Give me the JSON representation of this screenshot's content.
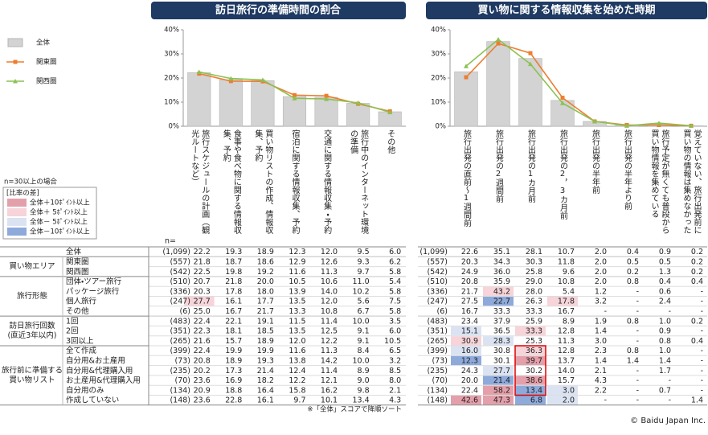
{
  "chart_data": [
    {
      "type": "bar",
      "title": "訪日旅行の準備時間の割合",
      "categories": [
        "旅行スケジュールの計画（観光ルートなど）",
        "食事や食べ物に関する情報収集、予約",
        "買い物リストの作成、情報収集、予約",
        "宿泊に関する情報収集、予約",
        "交通に関する情報収集・予約",
        "旅行中のインターネット環境の準備",
        "その他"
      ],
      "series": [
        {
          "name": "全体",
          "kind": "bar",
          "color": "#d3d3d3",
          "values": [
            22.2,
            19.3,
            18.9,
            12.3,
            12.0,
            9.5,
            6.0
          ]
        },
        {
          "name": "関東圏",
          "kind": "line",
          "marker": "square",
          "color": "#ed7d31",
          "values": [
            21.8,
            18.7,
            18.6,
            12.9,
            12.6,
            9.3,
            6.2
          ]
        },
        {
          "name": "関西圏",
          "kind": "line",
          "marker": "triangle",
          "color": "#8cc152",
          "values": [
            22.5,
            19.8,
            19.2,
            11.6,
            11.3,
            9.7,
            5.8
          ]
        }
      ],
      "ylim": [
        0,
        40
      ],
      "yticks": [
        {
          "value": 0,
          "label": "0%"
        },
        {
          "value": 10,
          "label": "10%"
        },
        {
          "value": 20,
          "label": "20%"
        },
        {
          "value": 30,
          "label": "30%"
        },
        {
          "value": 40,
          "label": "40%"
        }
      ]
    },
    {
      "type": "bar",
      "title": "買い物に関する情報収集を始めた時期",
      "categories": [
        "旅行出発の直前〜1週間前",
        "旅行出発の2週間前",
        "旅行出発の1カ月前",
        "旅行出発の2，3カ月前",
        "旅行出発の半年前",
        "旅行出発の半年より前",
        "旅行予定が無くても普段から買い物情報を集めている",
        "覚えていない、旅行出発前に買い物の情報は集めなかった"
      ],
      "series": [
        {
          "kind": "bar",
          "color": "#d3d3d3",
          "values": [
            22.6,
            35.1,
            28.1,
            10.7,
            2.0,
            0.4,
            0.9,
            0.2
          ]
        },
        {
          "kind": "line",
          "marker": "square",
          "color": "#ed7d31",
          "values": [
            20.3,
            34.3,
            30.3,
            11.8,
            2.0,
            0.5,
            0.5,
            0.2
          ]
        },
        {
          "kind": "line",
          "marker": "triangle",
          "color": "#8cc152",
          "values": [
            24.9,
            36.0,
            25.8,
            9.6,
            2.0,
            0.2,
            1.3,
            0.2
          ]
        }
      ],
      "ylim": [
        0,
        40
      ],
      "yticks": [
        {
          "value": 0,
          "label": "0%"
        },
        {
          "value": 10,
          "label": "10%"
        },
        {
          "value": 20,
          "label": "20%"
        },
        {
          "value": 30,
          "label": "30%"
        },
        {
          "value": 40,
          "label": "40%"
        }
      ]
    }
  ],
  "note": "n=30以上の場合",
  "diff_legend": {
    "title": "[比率の差]",
    "items": [
      {
        "label": "全体＋10ﾎﾟｲﾝﾄ以上",
        "color": "#e3a0aa"
      },
      {
        "label": "全体＋ 5ﾎﾟｲﾝﾄ以上",
        "color": "#f6d4d9"
      },
      {
        "label": "全体－ 5ﾎﾟｲﾝﾄ以上",
        "color": "#dbe3f3"
      },
      {
        "label": "全体－10ﾎﾟｲﾝﾄ以上",
        "color": "#8eaadb"
      }
    ]
  },
  "table": {
    "n_label": "n=",
    "sections": [
      {
        "rows": [
          {
            "label": "全体",
            "n": "(1,099)",
            "left": [
              "22.2",
              "19.3",
              "18.9",
              "12.3",
              "12.0",
              "9.5",
              "6.0"
            ],
            "right": [
              "22.6",
              "35.1",
              "28.1",
              "10.7",
              "2.0",
              "0.4",
              "0.9",
              "0.2"
            ]
          }
        ]
      },
      {
        "label": [
          "買い物エリア"
        ],
        "rows": [
          {
            "label": "関東圏",
            "n": "(557)",
            "left": [
              "21.8",
              "18.7",
              "18.6",
              "12.9",
              "12.6",
              "9.3",
              "6.2"
            ],
            "right": [
              "20.3",
              "34.3",
              "30.3",
              "11.8",
              "2.0",
              "0.5",
              "0.5",
              "0.2"
            ]
          },
          {
            "label": "関西圏",
            "n": "(542)",
            "left": [
              "22.5",
              "19.8",
              "19.2",
              "11.6",
              "11.3",
              "9.7",
              "5.8"
            ],
            "right": [
              "24.9",
              "36.0",
              "25.8",
              "9.6",
              "2.0",
              "0.2",
              "1.3",
              "0.2"
            ]
          }
        ]
      },
      {
        "label": [
          "旅行形態"
        ],
        "rows": [
          {
            "label": "団体・ツアー旅行",
            "n": "(510)",
            "left": [
              "20.7",
              "21.8",
              "20.0",
              "10.5",
              "10.6",
              "11.0",
              "5.4"
            ],
            "right": [
              "20.8",
              "35.9",
              "29.0",
              "10.8",
              "2.0",
              "0.8",
              "0.4",
              "0.4"
            ]
          },
          {
            "label": "パッケージ旅行",
            "n": "(336)",
            "left": [
              "20.3",
              "17.8",
              "18.0",
              "13.9",
              "14.0",
              "10.2",
              "5.8"
            ],
            "right": [
              "21.7",
              "43.2",
              "28.0",
              "5.4",
              "1.2",
              "-",
              "0.6",
              "-"
            ],
            "fills": [
              {
                "side": "right",
                "col": 1,
                "level": 1
              }
            ]
          },
          {
            "label": "個人旅行",
            "n": "(247)",
            "left": [
              "27.7",
              "16.1",
              "17.7",
              "13.5",
              "12.0",
              "5.6",
              "7.5"
            ],
            "right": [
              "27.5",
              "22.7",
              "26.3",
              "17.8",
              "3.2",
              "-",
              "2.4",
              "-"
            ],
            "fills": [
              {
                "side": "left",
                "col": 0,
                "level": 1
              },
              {
                "side": "right",
                "col": 1,
                "level": 3
              },
              {
                "side": "right",
                "col": 3,
                "level": 1
              }
            ]
          },
          {
            "label": "その他",
            "n": "(6)",
            "left": [
              "25.0",
              "16.7",
              "21.7",
              "13.3",
              "10.8",
              "6.7",
              "5.8"
            ],
            "right": [
              "16.7",
              "33.3",
              "33.3",
              "16.7",
              "-",
              "-",
              "-",
              "-"
            ]
          }
        ]
      },
      {
        "label": [
          "訪日旅行回数",
          "(直近3年以内)"
        ],
        "rows": [
          {
            "label": "1回",
            "n": "(483)",
            "left": [
              "22.4",
              "22.1",
              "19.1",
              "11.5",
              "11.4",
              "10.0",
              "3.5"
            ],
            "right": [
              "23.4",
              "37.9",
              "25.9",
              "8.9",
              "1.9",
              "0.8",
              "1.0",
              "0.2"
            ]
          },
          {
            "label": "2回",
            "n": "(351)",
            "left": [
              "22.3",
              "18.1",
              "18.5",
              "13.5",
              "12.5",
              "9.1",
              "6.0"
            ],
            "right": [
              "15.1",
              "36.5",
              "33.3",
              "12.8",
              "1.4",
              "-",
              "0.9",
              "-"
            ],
            "fills": [
              {
                "side": "right",
                "col": 0,
                "level": 2
              },
              {
                "side": "right",
                "col": 2,
                "level": 1
              }
            ]
          },
          {
            "label": "3回以上",
            "n": "(265)",
            "left": [
              "21.6",
              "15.7",
              "18.9",
              "12.0",
              "12.2",
              "9.1",
              "10.5"
            ],
            "right": [
              "30.9",
              "28.3",
              "25.3",
              "11.3",
              "3.0",
              "-",
              "0.8",
              "0.4"
            ],
            "fills": [
              {
                "side": "right",
                "col": 0,
                "level": 1
              },
              {
                "side": "right",
                "col": 1,
                "level": 2
              }
            ]
          }
        ]
      },
      {
        "label": [
          "旅行前に準備する",
          "買い物リスト"
        ],
        "rows": [
          {
            "label": "全て作成",
            "n": "(399)",
            "left": [
              "22.4",
              "19.9",
              "19.9",
              "11.6",
              "11.3",
              "8.4",
              "6.5"
            ],
            "right": [
              "16.0",
              "30.8",
              "36.3",
              "12.8",
              "2.3",
              "0.8",
              "1.0",
              "-"
            ],
            "fills": [
              {
                "side": "right",
                "col": 0,
                "level": 2
              },
              {
                "side": "right",
                "col": 2,
                "level": 1
              }
            ]
          },
          {
            "label": "自分用&お土産用",
            "n": "(73)",
            "left": [
              "20.8",
              "18.9",
              "19.3",
              "13.8",
              "14.2",
              "10.0",
              "3.2"
            ],
            "right": [
              "12.3",
              "30.1",
              "39.7",
              "13.7",
              "1.4",
              "1.4",
              "1.4",
              "-"
            ],
            "fills": [
              {
                "side": "right",
                "col": 0,
                "level": 3
              },
              {
                "side": "right",
                "col": 2,
                "level": 0
              }
            ]
          },
          {
            "label": "自分用&代理購入用",
            "n": "(235)",
            "left": [
              "20.2",
              "17.3",
              "21.4",
              "12.4",
              "11.4",
              "8.9",
              "8.5"
            ],
            "right": [
              "24.3",
              "27.7",
              "30.2",
              "14.0",
              "2.1",
              "-",
              "1.7",
              "-"
            ],
            "fills": [
              {
                "side": "right",
                "col": 1,
                "level": 2
              }
            ]
          },
          {
            "label": "お土産用&代理購入用",
            "n": "(70)",
            "left": [
              "23.6",
              "16.9",
              "18.2",
              "12.2",
              "12.1",
              "9.0",
              "8.0"
            ],
            "right": [
              "20.0",
              "21.4",
              "38.6",
              "15.7",
              "4.3",
              "-",
              "-",
              "-"
            ],
            "fills": [
              {
                "side": "right",
                "col": 1,
                "level": 3
              },
              {
                "side": "right",
                "col": 2,
                "level": 0
              }
            ]
          },
          {
            "label": "自分用のみ",
            "n": "(134)",
            "left": [
              "20.9",
              "18.8",
              "16.4",
              "15.8",
              "16.2",
              "9.8",
              "2.1"
            ],
            "right": [
              "22.4",
              "58.2",
              "13.4",
              "3.0",
              "2.2",
              "-",
              "0.7",
              "-"
            ],
            "fills": [
              {
                "side": "right",
                "col": 1,
                "level": 0
              },
              {
                "side": "right",
                "col": 2,
                "level": 3
              },
              {
                "side": "right",
                "col": 3,
                "level": 2
              }
            ]
          },
          {
            "label": "作成していない",
            "n": "(148)",
            "left": [
              "23.6",
              "22.8",
              "16.1",
              "9.7",
              "10.1",
              "13.4",
              "4.3"
            ],
            "right": [
              "42.6",
              "47.3",
              "6.8",
              "2.0",
              "-",
              "-",
              "-",
              "1.4"
            ],
            "fills": [
              {
                "side": "right",
                "col": 0,
                "level": 0
              },
              {
                "side": "right",
                "col": 1,
                "level": 0
              },
              {
                "side": "right",
                "col": 2,
                "level": 3
              },
              {
                "side": "right",
                "col": 3,
                "level": 2
              }
            ]
          }
        ]
      }
    ]
  },
  "footnote": "※「全体」スコアで降順ソート",
  "copyright": "© Baidu Japan Inc."
}
